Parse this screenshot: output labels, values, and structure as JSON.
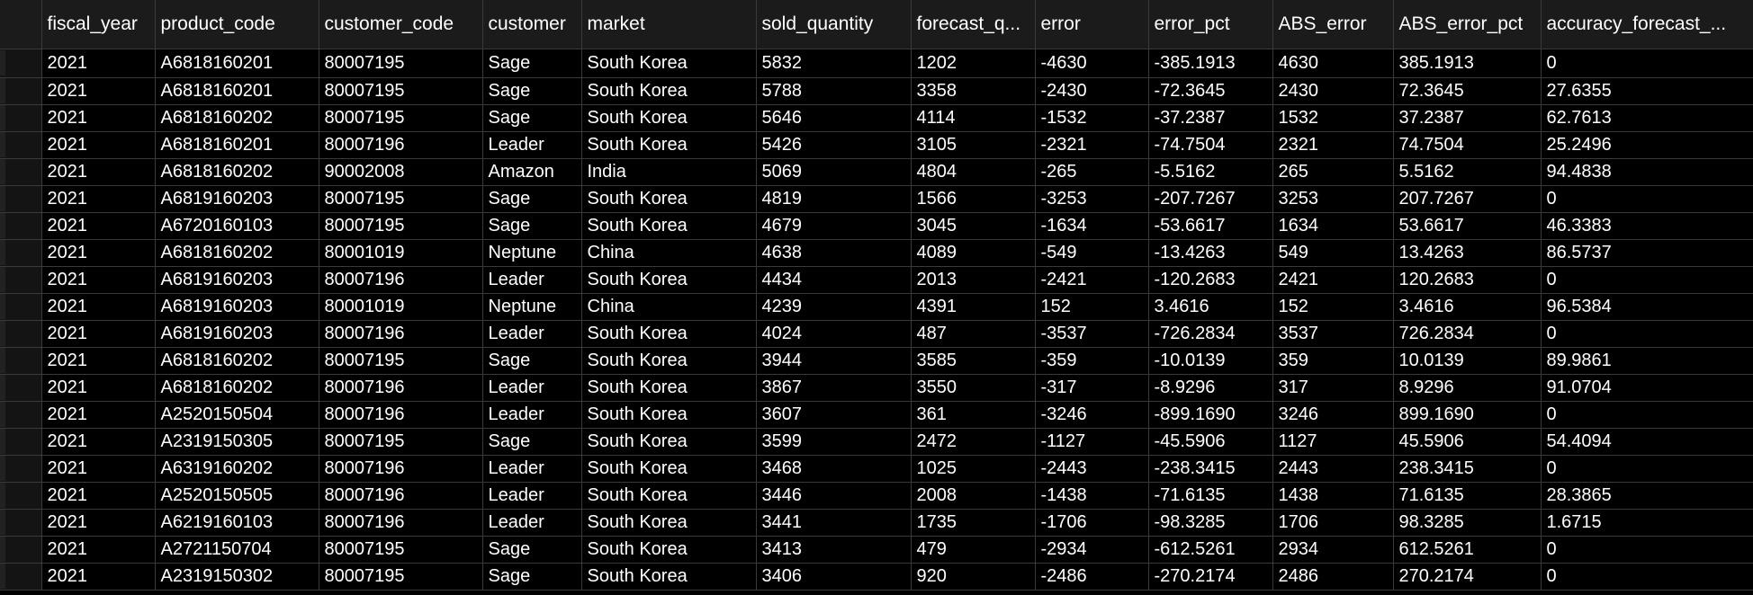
{
  "grid": {
    "columns": [
      "fiscal_year",
      "product_code",
      "customer_code",
      "customer",
      "market",
      "sold_quantity",
      "forecast_q...",
      "error",
      "error_pct",
      "ABS_error",
      "ABS_error_pct",
      "accuracy_forecast_..."
    ],
    "rows": [
      [
        "2021",
        "A6818160201",
        "80007195",
        "Sage",
        "South Korea",
        "5832",
        "1202",
        "-4630",
        "-385.1913",
        "4630",
        "385.1913",
        "0"
      ],
      [
        "2021",
        "A6818160201",
        "80007195",
        "Sage",
        "South Korea",
        "5788",
        "3358",
        "-2430",
        "-72.3645",
        "2430",
        "72.3645",
        "27.6355"
      ],
      [
        "2021",
        "A6818160202",
        "80007195",
        "Sage",
        "South Korea",
        "5646",
        "4114",
        "-1532",
        "-37.2387",
        "1532",
        "37.2387",
        "62.7613"
      ],
      [
        "2021",
        "A6818160201",
        "80007196",
        "Leader",
        "South Korea",
        "5426",
        "3105",
        "-2321",
        "-74.7504",
        "2321",
        "74.7504",
        "25.2496"
      ],
      [
        "2021",
        "A6818160202",
        "90002008",
        "Amazon",
        "India",
        "5069",
        "4804",
        "-265",
        "-5.5162",
        "265",
        "5.5162",
        "94.4838"
      ],
      [
        "2021",
        "A6819160203",
        "80007195",
        "Sage",
        "South Korea",
        "4819",
        "1566",
        "-3253",
        "-207.7267",
        "3253",
        "207.7267",
        "0"
      ],
      [
        "2021",
        "A6720160103",
        "80007195",
        "Sage",
        "South Korea",
        "4679",
        "3045",
        "-1634",
        "-53.6617",
        "1634",
        "53.6617",
        "46.3383"
      ],
      [
        "2021",
        "A6818160202",
        "80001019",
        "Neptune",
        "China",
        "4638",
        "4089",
        "-549",
        "-13.4263",
        "549",
        "13.4263",
        "86.5737"
      ],
      [
        "2021",
        "A6819160203",
        "80007196",
        "Leader",
        "South Korea",
        "4434",
        "2013",
        "-2421",
        "-120.2683",
        "2421",
        "120.2683",
        "0"
      ],
      [
        "2021",
        "A6819160203",
        "80001019",
        "Neptune",
        "China",
        "4239",
        "4391",
        "152",
        "3.4616",
        "152",
        "3.4616",
        "96.5384"
      ],
      [
        "2021",
        "A6819160203",
        "80007196",
        "Leader",
        "South Korea",
        "4024",
        "487",
        "-3537",
        "-726.2834",
        "3537",
        "726.2834",
        "0"
      ],
      [
        "2021",
        "A6818160202",
        "80007195",
        "Sage",
        "South Korea",
        "3944",
        "3585",
        "-359",
        "-10.0139",
        "359",
        "10.0139",
        "89.9861"
      ],
      [
        "2021",
        "A6818160202",
        "80007196",
        "Leader",
        "South Korea",
        "3867",
        "3550",
        "-317",
        "-8.9296",
        "317",
        "8.9296",
        "91.0704"
      ],
      [
        "2021",
        "A2520150504",
        "80007196",
        "Leader",
        "South Korea",
        "3607",
        "361",
        "-3246",
        "-899.1690",
        "3246",
        "899.1690",
        "0"
      ],
      [
        "2021",
        "A2319150305",
        "80007195",
        "Sage",
        "South Korea",
        "3599",
        "2472",
        "-1127",
        "-45.5906",
        "1127",
        "45.5906",
        "54.4094"
      ],
      [
        "2021",
        "A6319160202",
        "80007196",
        "Leader",
        "South Korea",
        "3468",
        "1025",
        "-2443",
        "-238.3415",
        "2443",
        "238.3415",
        "0"
      ],
      [
        "2021",
        "A2520150505",
        "80007196",
        "Leader",
        "South Korea",
        "3446",
        "2008",
        "-1438",
        "-71.6135",
        "1438",
        "71.6135",
        "28.3865"
      ],
      [
        "2021",
        "A6219160103",
        "80007196",
        "Leader",
        "South Korea",
        "3441",
        "1735",
        "-1706",
        "-98.3285",
        "1706",
        "98.3285",
        "1.6715"
      ],
      [
        "2021",
        "A2721150704",
        "80007195",
        "Sage",
        "South Korea",
        "3413",
        "479",
        "-2934",
        "-612.5261",
        "2934",
        "612.5261",
        "0"
      ],
      [
        "2021",
        "A2319150302",
        "80007195",
        "Sage",
        "South Korea",
        "3406",
        "920",
        "-2486",
        "-270.2174",
        "2486",
        "270.2174",
        "0"
      ]
    ]
  },
  "colors": {
    "background": "#000000",
    "header_background": "#1b1b1b",
    "gridline": "#3a3a3a",
    "text": "#ffffff"
  }
}
